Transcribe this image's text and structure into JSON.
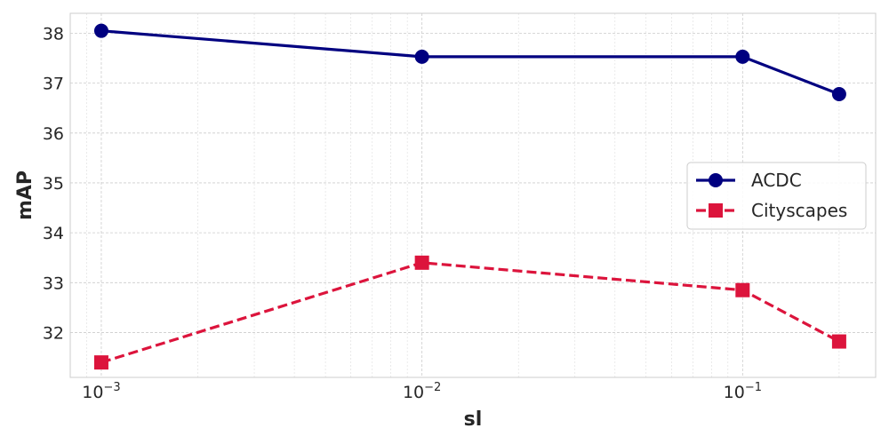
{
  "chart_data": {
    "type": "line",
    "title": "",
    "xlabel": "sl",
    "ylabel": "mAP",
    "xscale": "log",
    "xlim": [
      0.0008,
      0.26
    ],
    "ylim": [
      31.1,
      38.4
    ],
    "x": [
      0.001,
      0.01,
      0.1,
      0.2
    ],
    "xticks": [
      0.001,
      0.01,
      0.1
    ],
    "xtick_labels": [
      {
        "base": "10",
        "exp": "−3"
      },
      {
        "base": "10",
        "exp": "−2"
      },
      {
        "base": "10",
        "exp": "−1"
      }
    ],
    "yticks": [
      32,
      33,
      34,
      35,
      36,
      37,
      38
    ],
    "grid": true,
    "legend_position": "center-right",
    "series": [
      {
        "name": "ACDC",
        "values": [
          38.05,
          37.53,
          37.53,
          36.78
        ],
        "color": "#000080",
        "marker": "circle",
        "linestyle": "solid"
      },
      {
        "name": "Cityscapes",
        "values": [
          31.4,
          33.4,
          32.85,
          31.82
        ],
        "color": "#DC143C",
        "marker": "square",
        "linestyle": "dashed"
      }
    ]
  }
}
